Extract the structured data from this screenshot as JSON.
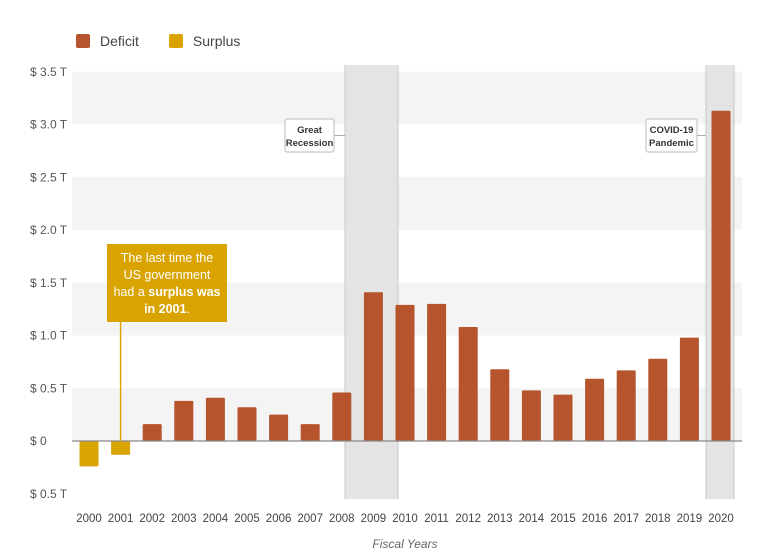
{
  "legend": {
    "deficit_label": "Deficit",
    "surplus_label": "Surplus"
  },
  "colors": {
    "deficit": "#b5542d",
    "surplus": "#d9a300",
    "band_shade": "#e4e4e4",
    "stripe": "#f4f4f4"
  },
  "callout": {
    "line1": "The last time the",
    "line2": "US government",
    "line3_a": "had a ",
    "line3_b": "surplus was",
    "line4_b": "in 2001",
    "line4_c": "."
  },
  "annotations": [
    {
      "label_line1": "Great",
      "label_line2": "Recession",
      "from_year": "2008",
      "to_year": "2009"
    },
    {
      "label_line1": "COVID-19",
      "label_line2": "Pandemic",
      "from_year": "2020",
      "to_year": "2020"
    }
  ],
  "chart_data": {
    "type": "bar",
    "xlabel": "Fiscal Years",
    "ylabel": "",
    "ylim": [
      -0.5,
      3.5
    ],
    "ytick_values": [
      -0.5,
      0,
      0.5,
      1.0,
      1.5,
      2.0,
      2.5,
      3.0,
      3.5
    ],
    "ytick_labels": [
      "$ 0.5 T",
      "$ 0",
      "$ 0.5 T",
      "$ 1.0 T",
      "$ 1.5 T",
      "$ 2.0 T",
      "$ 2.5 T",
      "$ 3.0 T",
      "$ 3.5 T"
    ],
    "categories": [
      "2000",
      "2001",
      "2002",
      "2003",
      "2004",
      "2005",
      "2006",
      "2007",
      "2008",
      "2009",
      "2010",
      "2011",
      "2012",
      "2013",
      "2014",
      "2015",
      "2016",
      "2017",
      "2018",
      "2019",
      "2020"
    ],
    "series": [
      {
        "name": "Deficit",
        "values": [
          null,
          null,
          0.16,
          0.38,
          0.41,
          0.32,
          0.25,
          0.16,
          0.46,
          1.41,
          1.29,
          1.3,
          1.08,
          0.68,
          0.48,
          0.44,
          0.59,
          0.67,
          0.78,
          0.98,
          3.13
        ]
      },
      {
        "name": "Surplus",
        "values": [
          -0.24,
          -0.13,
          null,
          null,
          null,
          null,
          null,
          null,
          null,
          null,
          null,
          null,
          null,
          null,
          null,
          null,
          null,
          null,
          null,
          null,
          null
        ]
      }
    ]
  }
}
